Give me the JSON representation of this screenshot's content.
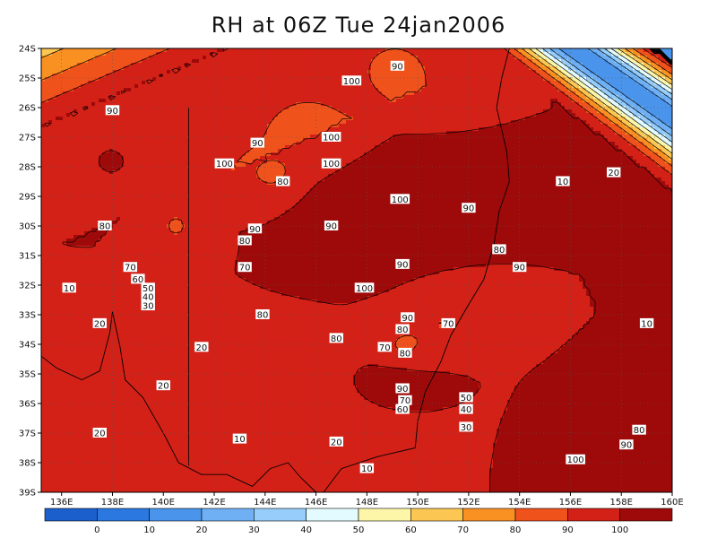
{
  "title": "RH at 06Z Tue 24jan2006",
  "chart_data": {
    "type": "heatmap",
    "title": "RH at 06Z Tue 24jan2006",
    "x_ticks": [
      "136E",
      "138E",
      "140E",
      "142E",
      "144E",
      "146E",
      "148E",
      "150E",
      "152E",
      "154E",
      "156E",
      "158E",
      "160E"
    ],
    "x_values": [
      136,
      138,
      140,
      142,
      144,
      146,
      148,
      150,
      152,
      154,
      156,
      158,
      160
    ],
    "y_ticks": [
      "24S",
      "25S",
      "26S",
      "27S",
      "28S",
      "29S",
      "30S",
      "31S",
      "32S",
      "33S",
      "34S",
      "35S",
      "36S",
      "37S",
      "38S",
      "39S"
    ],
    "y_values": [
      -24,
      -25,
      -26,
      -27,
      -28,
      -29,
      -30,
      -31,
      -32,
      -33,
      -34,
      -35,
      -36,
      -37,
      -38,
      -39
    ],
    "xlim": [
      135.2,
      160
    ],
    "ylim": [
      -39,
      -24
    ],
    "grid": "dotted",
    "colorbar": {
      "labels": [
        "0",
        "10",
        "20",
        "30",
        "40",
        "50",
        "60",
        "70",
        "80",
        "90",
        "100"
      ],
      "bins": [
        -10,
        0,
        10,
        20,
        30,
        40,
        50,
        60,
        70,
        80,
        90,
        100
      ],
      "colors": [
        "#1a5fcc",
        "#2a78e0",
        "#4a94ec",
        "#6fb0f4",
        "#96cdfa",
        "#e3fbff",
        "#fdf6a8",
        "#fcc653",
        "#f99022",
        "#f0521c",
        "#d42117",
        "#9e0a0a"
      ]
    },
    "contour_labels": [
      {
        "text": "90",
        "lon": 149.2,
        "lat": -24.6
      },
      {
        "text": "100",
        "lon": 147.4,
        "lat": -25.1
      },
      {
        "text": "90",
        "lon": 138.0,
        "lat": -26.1
      },
      {
        "text": "100",
        "lon": 146.6,
        "lat": -27.0
      },
      {
        "text": "90",
        "lon": 143.7,
        "lat": -27.2
      },
      {
        "text": "100",
        "lon": 146.6,
        "lat": -27.9
      },
      {
        "text": "100",
        "lon": 142.4,
        "lat": -27.9
      },
      {
        "text": "80",
        "lon": 144.7,
        "lat": -28.5
      },
      {
        "text": "100",
        "lon": 149.3,
        "lat": -29.1
      },
      {
        "text": "90",
        "lon": 152.0,
        "lat": -29.4
      },
      {
        "text": "10",
        "lon": 155.7,
        "lat": -28.5
      },
      {
        "text": "20",
        "lon": 157.7,
        "lat": -28.2
      },
      {
        "text": "90",
        "lon": 143.6,
        "lat": -30.1
      },
      {
        "text": "90",
        "lon": 146.6,
        "lat": -30.0
      },
      {
        "text": "80",
        "lon": 137.7,
        "lat": -30.0
      },
      {
        "text": "80",
        "lon": 143.2,
        "lat": -30.5
      },
      {
        "text": "80",
        "lon": 153.2,
        "lat": -30.8
      },
      {
        "text": "90",
        "lon": 149.4,
        "lat": -31.3
      },
      {
        "text": "90",
        "lon": 154.0,
        "lat": -31.4
      },
      {
        "text": "70",
        "lon": 138.7,
        "lat": -31.4
      },
      {
        "text": "70",
        "lon": 143.2,
        "lat": -31.4
      },
      {
        "text": "60",
        "lon": 139.0,
        "lat": -31.8
      },
      {
        "text": "50",
        "lon": 139.4,
        "lat": -32.1
      },
      {
        "text": "40",
        "lon": 139.4,
        "lat": -32.4
      },
      {
        "text": "30",
        "lon": 139.4,
        "lat": -32.7
      },
      {
        "text": "10",
        "lon": 136.3,
        "lat": -32.1
      },
      {
        "text": "100",
        "lon": 147.9,
        "lat": -32.1
      },
      {
        "text": "80",
        "lon": 143.9,
        "lat": -33.0
      },
      {
        "text": "90",
        "lon": 149.6,
        "lat": -33.1
      },
      {
        "text": "70",
        "lon": 151.2,
        "lat": -33.3
      },
      {
        "text": "10",
        "lon": 159.0,
        "lat": -33.3
      },
      {
        "text": "20",
        "lon": 137.5,
        "lat": -33.3
      },
      {
        "text": "80",
        "lon": 149.4,
        "lat": -33.5
      },
      {
        "text": "80",
        "lon": 146.8,
        "lat": -33.8
      },
      {
        "text": "70",
        "lon": 148.7,
        "lat": -34.1
      },
      {
        "text": "80",
        "lon": 149.5,
        "lat": -34.3
      },
      {
        "text": "20",
        "lon": 141.5,
        "lat": -34.1
      },
      {
        "text": "20",
        "lon": 140.0,
        "lat": -35.4
      },
      {
        "text": "90",
        "lon": 149.4,
        "lat": -35.5
      },
      {
        "text": "70",
        "lon": 149.5,
        "lat": -35.9
      },
      {
        "text": "60",
        "lon": 149.4,
        "lat": -36.2
      },
      {
        "text": "50",
        "lon": 151.9,
        "lat": -35.8
      },
      {
        "text": "40",
        "lon": 151.9,
        "lat": -36.2
      },
      {
        "text": "30",
        "lon": 151.9,
        "lat": -36.8
      },
      {
        "text": "20",
        "lon": 137.5,
        "lat": -37.0
      },
      {
        "text": "10",
        "lon": 143.0,
        "lat": -37.2
      },
      {
        "text": "20",
        "lon": 146.8,
        "lat": -37.3
      },
      {
        "text": "80",
        "lon": 158.7,
        "lat": -36.9
      },
      {
        "text": "90",
        "lon": 158.2,
        "lat": -37.4
      },
      {
        "text": "100",
        "lon": 156.2,
        "lat": -37.9
      },
      {
        "text": "10",
        "lon": 148.0,
        "lat": -38.2
      }
    ]
  }
}
